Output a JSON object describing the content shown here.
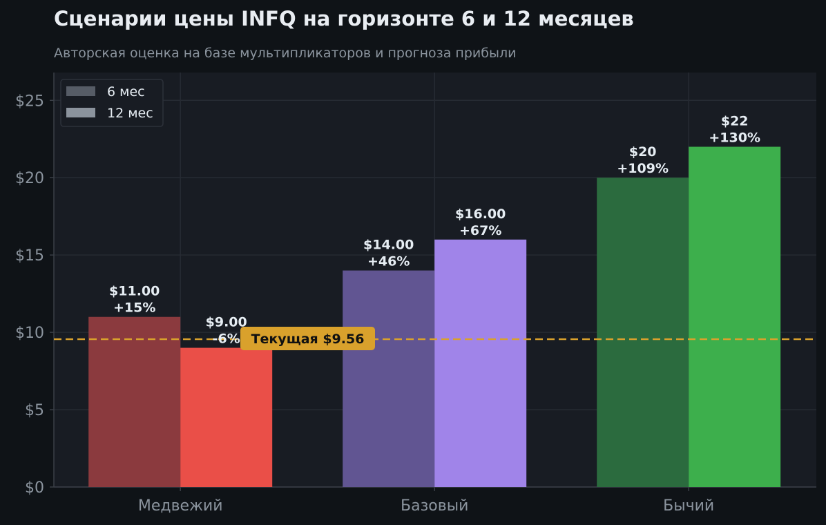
{
  "header": {
    "title": "Сценарии цены INFQ на горизонте 6 и 12 месяцев",
    "subtitle": "Авторская оценка на базе мультипликаторов и прогноза прибыли"
  },
  "chart_data": {
    "type": "bar",
    "title": "Сценарии цены INFQ на горизонте 6 и 12 месяцев",
    "subtitle": "Авторская оценка на базе мультипликаторов и прогноза прибыли",
    "categories": [
      "Медвежий",
      "Базовый",
      "Бычий"
    ],
    "series": [
      {
        "name": "6 мес",
        "values": [
          11,
          14,
          20
        ],
        "labels": [
          [
            "$11.00",
            "+15%"
          ],
          [
            "$14.00",
            "+46%"
          ],
          [
            "$20",
            "+109%"
          ]
        ],
        "colors": [
          "#8b3a3e",
          "#615592",
          "#2b6b3e"
        ]
      },
      {
        "name": "12 мес",
        "values": [
          9,
          16,
          22
        ],
        "labels": [
          [
            "$9.00",
            "-6%"
          ],
          [
            "$16.00",
            "+67%"
          ],
          [
            "$22",
            "+130%"
          ]
        ],
        "colors": [
          "#ea4f48",
          "#a084e9",
          "#3daf4c"
        ]
      }
    ],
    "yticks": [
      "$0",
      "$5",
      "$10",
      "$15",
      "$20",
      "$25"
    ],
    "ytick_values": [
      0,
      5,
      10,
      15,
      20,
      25
    ],
    "ylim": [
      0,
      26.8
    ],
    "grid": true,
    "legend": {
      "placement": "top-left",
      "colors": [
        "#565c66",
        "#8b939d"
      ]
    },
    "reference_line": {
      "value": 9.56,
      "label": "Текущая $9.56",
      "color": "#d9a12c"
    },
    "colors": {
      "plot_bg": "#181c23",
      "grid": "#262b33",
      "axis": "#3a3f47"
    }
  }
}
